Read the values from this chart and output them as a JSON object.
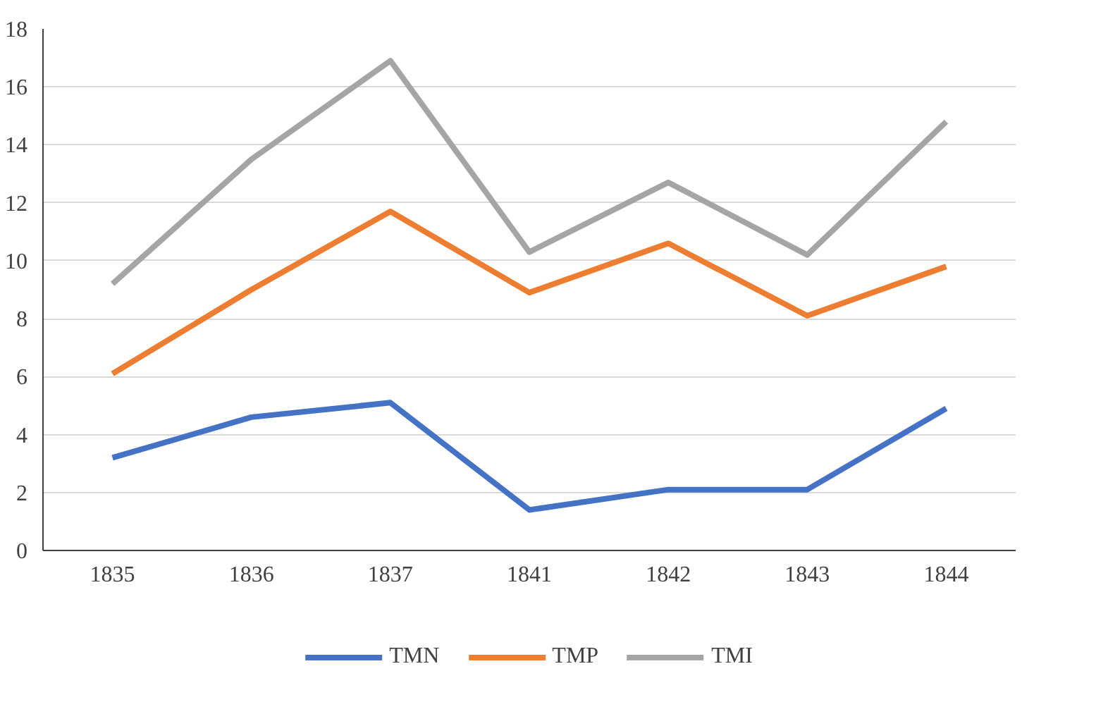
{
  "chart_data": {
    "type": "line",
    "categories": [
      "1835",
      "1836",
      "1837",
      "1841",
      "1842",
      "1843",
      "1844"
    ],
    "series": [
      {
        "name": "TMN",
        "color": "#4472c4",
        "values": [
          3.2,
          4.6,
          5.1,
          1.4,
          2.1,
          2.1,
          4.9
        ]
      },
      {
        "name": "TMP",
        "color": "#ed7d31",
        "values": [
          6.1,
          9.0,
          11.7,
          8.9,
          10.6,
          8.1,
          9.8
        ]
      },
      {
        "name": "TMI",
        "color": "#a5a5a5",
        "values": [
          9.2,
          13.5,
          16.9,
          10.3,
          12.7,
          10.2,
          14.8
        ]
      }
    ],
    "ylim": [
      0,
      18
    ],
    "yticks": [
      0,
      2,
      4,
      6,
      8,
      10,
      12,
      14,
      16,
      18
    ],
    "grid": "y",
    "legend": "bottom",
    "marker": "none",
    "line_style": "solid"
  }
}
